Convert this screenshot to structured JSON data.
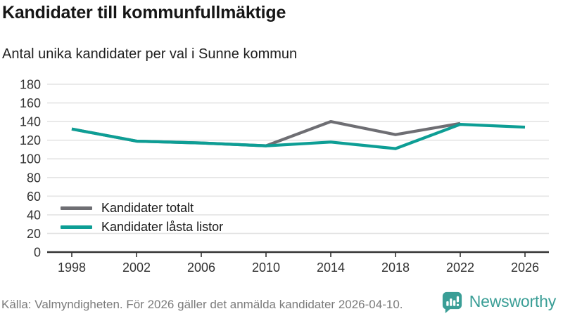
{
  "header": {
    "title": "Kandidater till kommunfullmäktige",
    "subtitle": "Antal unika kandidater per val i Sunne kommun"
  },
  "chart_data": {
    "type": "line",
    "x": [
      1998,
      2002,
      2006,
      2010,
      2014,
      2018,
      2022,
      2026
    ],
    "series": [
      {
        "name": "Kandidater totalt",
        "color": "#6e6e73",
        "values": [
          132,
          119,
          117,
          114,
          140,
          126,
          138,
          null
        ]
      },
      {
        "name": "Kandidater låsta listor",
        "color": "#0d9e95",
        "values": [
          132,
          119,
          117,
          114,
          118,
          111,
          137,
          134
        ]
      }
    ],
    "title": "Kandidater till kommunfullmäktige",
    "subtitle": "Antal unika kandidater per val i Sunne kommun",
    "xlabel": "",
    "ylabel": "",
    "ylim": [
      0,
      180
    ],
    "y_ticks": [
      0,
      20,
      40,
      60,
      80,
      100,
      120,
      140,
      160,
      180
    ],
    "grid": "horizontal-only",
    "legend_position": "inside-bottom-left",
    "axis_color": "#333333",
    "gridline_color": "#e4e4e4",
    "tick_label_color": "#333333"
  },
  "legend": {
    "items": [
      {
        "label": "Kandidater totalt",
        "color": "#6e6e73"
      },
      {
        "label": "Kandidater låsta listor",
        "color": "#0d9e95"
      }
    ]
  },
  "footer": {
    "source": "Källa: Valmyndigheten. För 2026 gäller det anmälda kandidater 2026-04-10."
  },
  "logo": {
    "text": "Newsworthy",
    "color": "#3a9e96",
    "icon": "newsworthy-speech-bubble-bar-chart-icon"
  }
}
